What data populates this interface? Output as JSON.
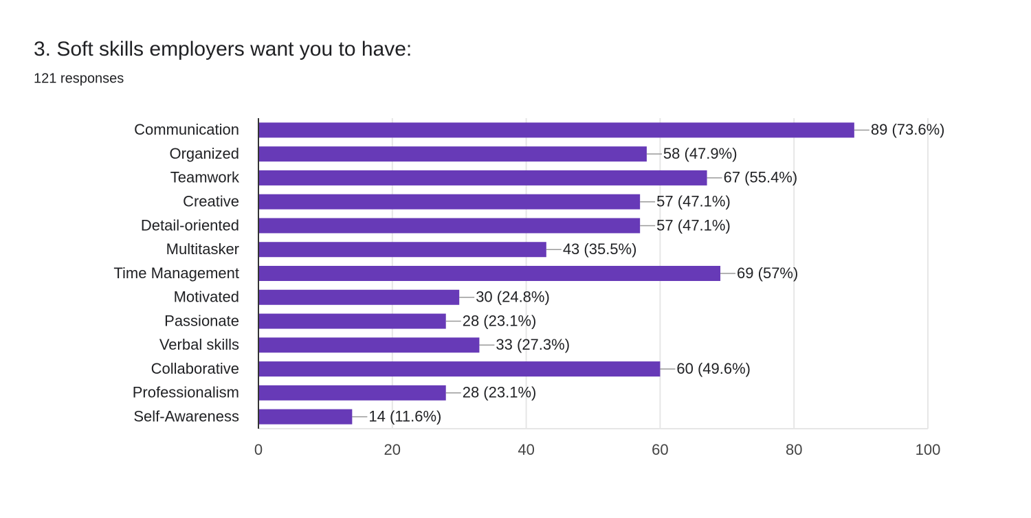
{
  "chart_data": {
    "type": "bar",
    "orientation": "horizontal",
    "title": "3. Soft skills employers want you to have:",
    "subtitle": "121 responses",
    "categories": [
      "Communication",
      "Organized",
      "Teamwork",
      "Creative",
      "Detail-oriented",
      "Multitasker",
      "Time Management",
      "Motivated",
      "Passionate",
      "Verbal skills",
      "Collaborative",
      "Professionalism",
      "Self-Awareness"
    ],
    "values": [
      89,
      58,
      67,
      57,
      57,
      43,
      69,
      30,
      28,
      33,
      60,
      28,
      14
    ],
    "value_labels": [
      "89 (73.6%)",
      "58 (47.9%)",
      "67 (55.4%)",
      "57 (47.1%)",
      "57 (47.1%)",
      "43 (35.5%)",
      "69 (57%)",
      "30 (24.8%)",
      "28 (23.1%)",
      "33 (27.3%)",
      "60 (49.6%)",
      "28 (23.1%)",
      "14 (11.6%)"
    ],
    "color": "#673ab7",
    "xlim": [
      0,
      100
    ],
    "xticks": [
      0,
      20,
      40,
      60,
      80,
      100
    ],
    "grid": true
  }
}
